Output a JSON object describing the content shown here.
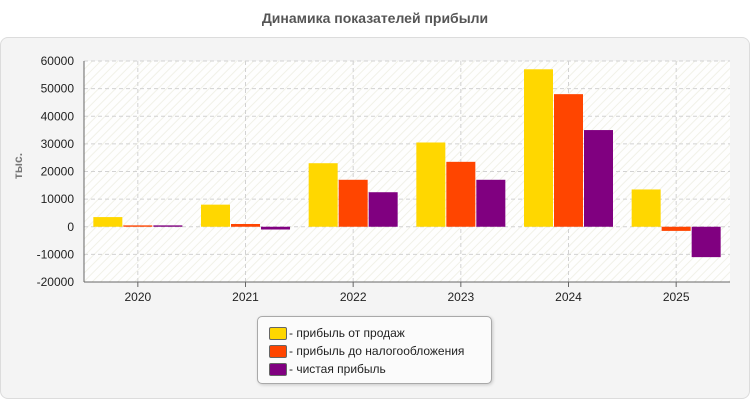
{
  "chart_data": {
    "type": "bar",
    "title": "Динамика показателей прибыли",
    "xlabel": "",
    "ylabel": "тыс.",
    "categories": [
      "2020",
      "2021",
      "2022",
      "2023",
      "2024",
      "2025"
    ],
    "ylim": [
      -20000,
      60000
    ],
    "yticks": [
      60000,
      50000,
      40000,
      30000,
      20000,
      10000,
      0,
      -10000,
      -20000
    ],
    "grid": true,
    "legend_position": "bottom-center",
    "series": [
      {
        "name": "- прибыль от продаж",
        "color": "#ffd700",
        "values": [
          3500,
          8000,
          23000,
          30500,
          57000,
          13500
        ]
      },
      {
        "name": "- прибыль до налогообложения",
        "color": "#ff4500",
        "values": [
          500,
          1000,
          17000,
          23500,
          48000,
          -1500
        ]
      },
      {
        "name": "- чистая прибыль",
        "color": "#800080",
        "values": [
          500,
          -1000,
          12500,
          17000,
          35000,
          -11000
        ]
      }
    ]
  }
}
